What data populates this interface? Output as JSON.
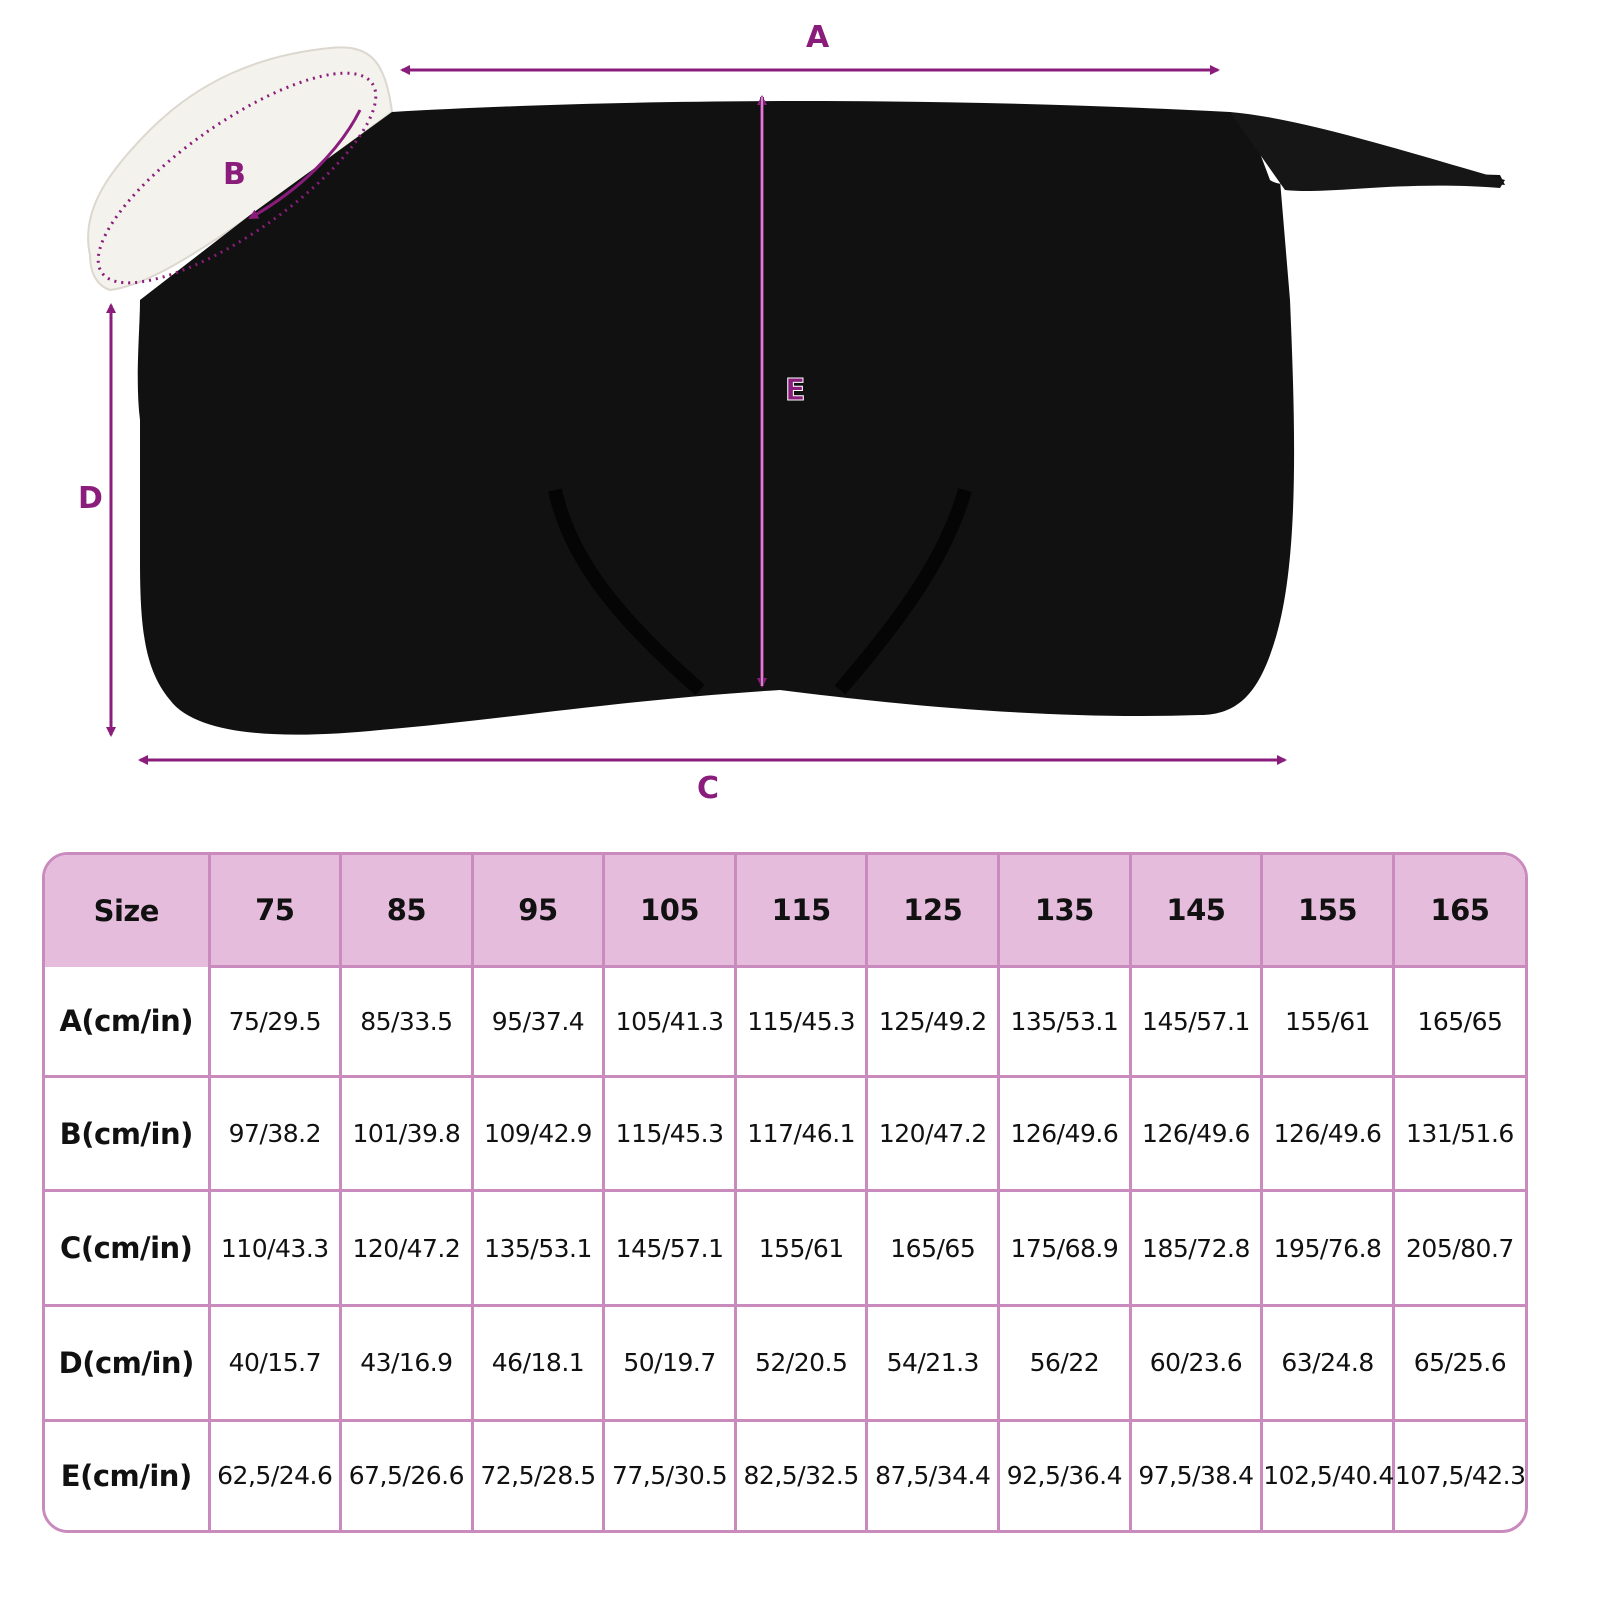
{
  "diagram": {
    "labels": {
      "A": "A",
      "B": "B",
      "C": "C",
      "D": "D",
      "E": "E"
    },
    "colors": {
      "accent": "#8a1c7c",
      "rug": "#111111",
      "fleece": "#f4f2ec"
    }
  },
  "table": {
    "header_color": "#e5bcdc",
    "border_color": "#c98bbd",
    "columns": [
      "Size",
      "75",
      "85",
      "95",
      "105",
      "115",
      "125",
      "135",
      "145",
      "155",
      "165"
    ],
    "rows": [
      {
        "label": "A(cm/in)",
        "values": [
          "75/29.5",
          "85/33.5",
          "95/37.4",
          "105/41.3",
          "115/45.3",
          "125/49.2",
          "135/53.1",
          "145/57.1",
          "155/61",
          "165/65"
        ]
      },
      {
        "label": "B(cm/in)",
        "values": [
          "97/38.2",
          "101/39.8",
          "109/42.9",
          "115/45.3",
          "117/46.1",
          "120/47.2",
          "126/49.6",
          "126/49.6",
          "126/49.6",
          "131/51.6"
        ]
      },
      {
        "label": "C(cm/in)",
        "values": [
          "110/43.3",
          "120/47.2",
          "135/53.1",
          "145/57.1",
          "155/61",
          "165/65",
          "175/68.9",
          "185/72.8",
          "195/76.8",
          "205/80.7"
        ]
      },
      {
        "label": "D(cm/in)",
        "values": [
          "40/15.7",
          "43/16.9",
          "46/18.1",
          "50/19.7",
          "52/20.5",
          "54/21.3",
          "56/22",
          "60/23.6",
          "63/24.8",
          "65/25.6"
        ]
      },
      {
        "label": "E(cm/in)",
        "values": [
          "62,5/24.6",
          "67,5/26.6",
          "72,5/28.5",
          "77,5/30.5",
          "82,5/32.5",
          "87,5/34.4",
          "92,5/36.4",
          "97,5/38.4",
          "102,5/40.4",
          "107,5/42.3"
        ]
      }
    ]
  }
}
